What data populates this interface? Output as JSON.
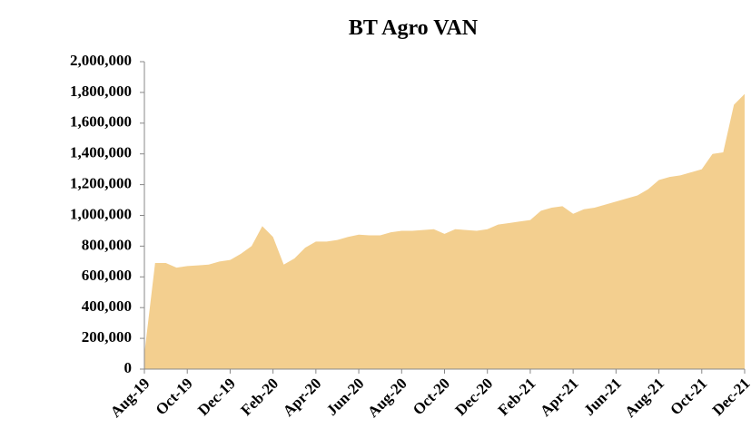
{
  "chart_data": {
    "type": "area",
    "title": "BT Agro VAN",
    "color": "#f3cf8f",
    "categories": [
      "Aug-19",
      null,
      null,
      null,
      "Oct-19",
      null,
      null,
      null,
      "Dec-19",
      null,
      null,
      null,
      "Feb-20",
      null,
      null,
      null,
      "Apr-20",
      null,
      null,
      null,
      "Jun-20",
      null,
      null,
      null,
      "Aug-20",
      null,
      null,
      null,
      "Oct-20",
      null,
      null,
      null,
      "Dec-20",
      null,
      null,
      null,
      "Feb-21",
      null,
      null,
      null,
      "Apr-21",
      null,
      null,
      null,
      "Jun-21",
      null,
      null,
      null,
      "Aug-21",
      null,
      null,
      null,
      "Oct-21",
      null,
      null,
      null,
      "Dec-21"
    ],
    "values": [
      100000,
      690000,
      690000,
      660000,
      670000,
      675000,
      680000,
      700000,
      710000,
      750000,
      800000,
      930000,
      860000,
      680000,
      720000,
      790000,
      830000,
      830000,
      840000,
      860000,
      875000,
      870000,
      870000,
      890000,
      900000,
      900000,
      905000,
      910000,
      880000,
      910000,
      905000,
      900000,
      910000,
      940000,
      950000,
      960000,
      970000,
      1030000,
      1050000,
      1060000,
      1010000,
      1040000,
      1050000,
      1070000,
      1090000,
      1110000,
      1130000,
      1170000,
      1230000,
      1250000,
      1260000,
      1280000,
      1300000,
      1400000,
      1410000,
      1720000,
      1790000
    ],
    "ylim": [
      0,
      2000000
    ],
    "yticks": [
      0,
      {
        "value": 200000,
        "label": "200,000"
      },
      {
        "value": 400000,
        "label": "400,000"
      },
      {
        "value": 600000,
        "label": "600,000"
      },
      {
        "value": 800000,
        "label": "800,000"
      },
      {
        "value": 1000000,
        "label": "1,000,000"
      },
      {
        "value": 1200000,
        "label": "1,200,000"
      },
      {
        "value": 1400000,
        "label": "1,400,000"
      },
      {
        "value": 1600000,
        "label": "1,600,000"
      },
      {
        "value": 1800000,
        "label": "1,800,000"
      },
      {
        "value": 2000000,
        "label": "2,000,000"
      }
    ]
  }
}
